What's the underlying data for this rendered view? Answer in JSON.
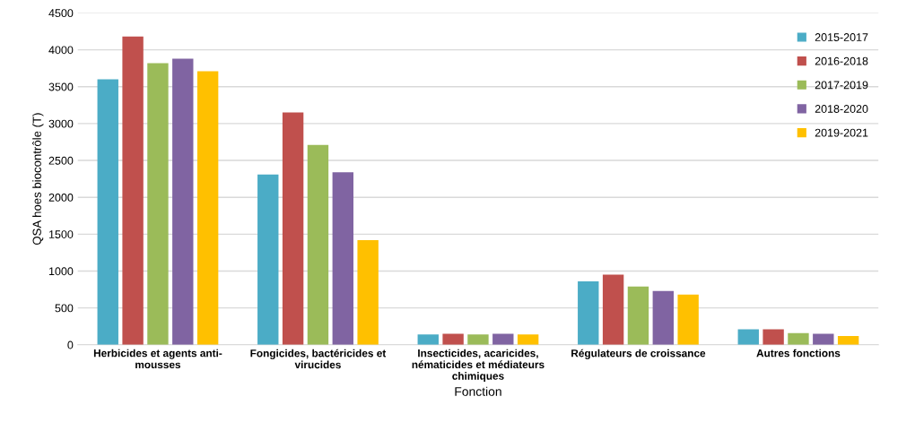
{
  "chart_data": {
    "type": "bar",
    "xlabel": "Fonction",
    "ylabel": "QSA hoes biocontrôle (T)",
    "categories": [
      "Herbicides et agents anti-\nmousses",
      "Fongicides, bactéricides et\nvirucides",
      "Insecticides, acaricides,\nnématicides et médiateurs\nchimiques",
      "Régulateurs de croissance",
      "Autres fonctions"
    ],
    "series": [
      {
        "name": "2015-2017",
        "color": "#4bacc6",
        "values": [
          3600,
          2310,
          140,
          860,
          210
        ]
      },
      {
        "name": "2016-2018",
        "color": "#c0504d",
        "values": [
          4180,
          3150,
          150,
          950,
          210
        ]
      },
      {
        "name": "2017-2019",
        "color": "#9bbb59",
        "values": [
          3820,
          2710,
          140,
          790,
          160
        ]
      },
      {
        "name": "2018-2020",
        "color": "#8064a2",
        "values": [
          3880,
          2340,
          150,
          730,
          150
        ]
      },
      {
        "name": "2019-2021",
        "color": "#ffc000",
        "values": [
          3710,
          1420,
          140,
          680,
          120
        ]
      }
    ],
    "ylim": [
      0,
      4500
    ],
    "yticks": [
      0,
      500,
      1000,
      1500,
      2000,
      2500,
      3000,
      3500,
      4000,
      4500
    ],
    "grid": "y",
    "legend": "right"
  }
}
